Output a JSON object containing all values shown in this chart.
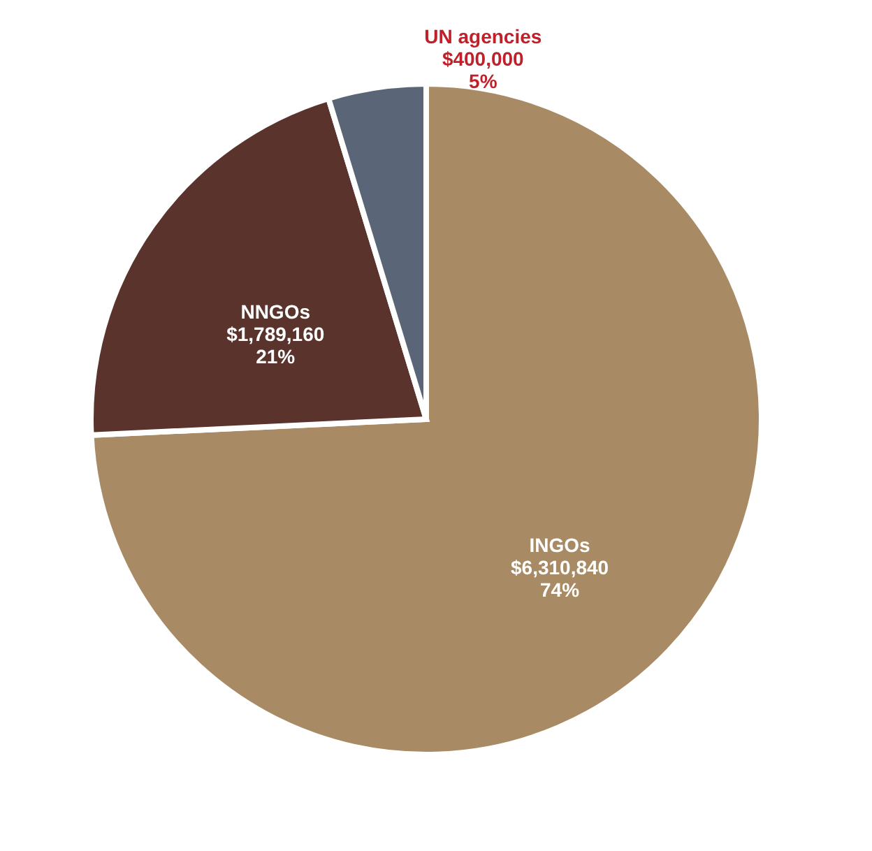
{
  "chart_data": {
    "type": "pie",
    "categories": [
      "INGOs",
      "NNGOs",
      "UN agencies"
    ],
    "values": [
      6310840,
      1789160,
      400000
    ],
    "colors": [
      "#a88b65",
      "#5a342c",
      "#5a6678"
    ],
    "value_labels": [
      "$6,310,840\n74%",
      "$1,789,160\n21%",
      "$400,000\n5%"
    ],
    "legend": false
  }
}
